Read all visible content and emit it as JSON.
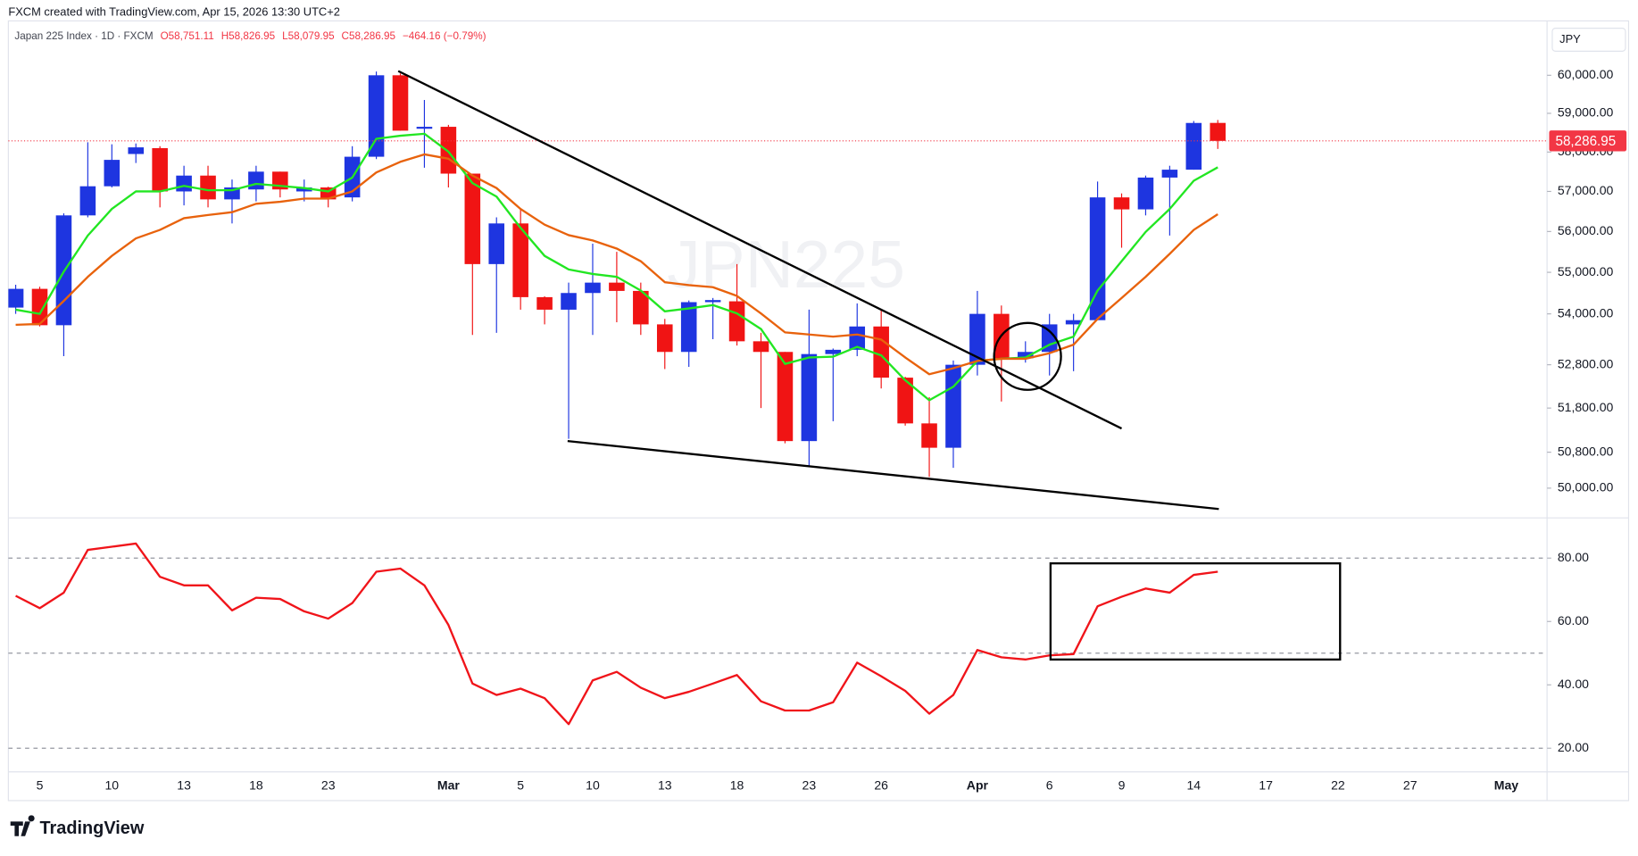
{
  "header": {
    "credit": "FXCM created with TradingView.com, Apr 15, 2026 13:30 UTC+2",
    "symbol": "Japan 225 Index · 1D · FXCM",
    "ohlc": [
      "O58,751.11",
      "H58,826.95",
      "L58,079.95",
      "C58,286.95"
    ],
    "change": "−464.16 (−0.79%)",
    "currency": "JPY",
    "watermark": "JPN225"
  },
  "logo": "TradingView",
  "chart_data": [
    {
      "type": "candlestick",
      "categories": [
        null,
        "5",
        null,
        null,
        "10",
        null,
        null,
        "13",
        null,
        null,
        "18",
        null,
        null,
        "23",
        null,
        null,
        null,
        null,
        "Mar",
        null,
        null,
        "5",
        null,
        null,
        "10",
        null,
        null,
        "13",
        null,
        null,
        "18",
        null,
        null,
        "23",
        null,
        null,
        "26",
        null,
        null,
        null,
        "Apr",
        null,
        null,
        "6",
        null,
        null,
        "9",
        null,
        null,
        "14",
        null,
        null,
        "17",
        null,
        null,
        "22",
        null,
        null,
        "27",
        null,
        null,
        null,
        "May"
      ],
      "open": [
        54150,
        54600,
        53730,
        56400,
        57130,
        57950,
        58100,
        57000,
        57400,
        56800,
        57050,
        57500,
        57000,
        57100,
        56850,
        57880,
        60000,
        58600,
        58650,
        57450,
        55200,
        56200,
        54400,
        54100,
        54500,
        54750,
        54550,
        53750,
        53100,
        54280,
        54300,
        53350,
        53100,
        51050,
        53050,
        53150,
        53700,
        52500,
        51450,
        50900,
        52800,
        54000,
        52950,
        53100,
        53750,
        53850,
        56850,
        56550,
        57350,
        57550,
        58751.11,
        null,
        null,
        null,
        null,
        null,
        null,
        null,
        null,
        null,
        null,
        null,
        null
      ],
      "high": [
        54700,
        54650,
        56450,
        58250,
        58200,
        58220,
        58150,
        57650,
        57650,
        57300,
        57650,
        57500,
        57300,
        57120,
        58150,
        60100,
        60050,
        59350,
        58700,
        57450,
        56350,
        56550,
        54420,
        54750,
        55700,
        55500,
        54750,
        53880,
        54320,
        54380,
        55200,
        53550,
        53100,
        54100,
        53180,
        54250,
        54100,
        52520,
        52050,
        52900,
        54550,
        54200,
        53350,
        54000,
        54000,
        57250,
        56950,
        57400,
        57650,
        58800,
        58826.95,
        null,
        null,
        null,
        null,
        null,
        null,
        null,
        null,
        null,
        null,
        null,
        null
      ],
      "low": [
        54000,
        53700,
        53000,
        56350,
        57100,
        57720,
        56600,
        56650,
        56600,
        56200,
        56750,
        56850,
        56750,
        56600,
        56750,
        57820,
        58550,
        57600,
        57100,
        53500,
        53550,
        54100,
        53750,
        51100,
        53500,
        53800,
        53500,
        52700,
        52750,
        53400,
        53250,
        51800,
        51000,
        50500,
        51500,
        53000,
        52250,
        51400,
        50250,
        50450,
        52550,
        51950,
        52850,
        52550,
        52650,
        53850,
        55600,
        56400,
        55900,
        57550,
        58079.95,
        null,
        null,
        null,
        null,
        null,
        null,
        null,
        null,
        null,
        null,
        null,
        null
      ],
      "close": [
        54600,
        53730,
        56400,
        57130,
        57800,
        58120,
        57000,
        57400,
        56800,
        57100,
        57500,
        57050,
        57100,
        56800,
        57880,
        60000,
        58550,
        58650,
        57450,
        55200,
        56200,
        54400,
        54100,
        54500,
        54750,
        54550,
        53750,
        53100,
        54280,
        54330,
        53350,
        53100,
        51050,
        53050,
        53150,
        53700,
        52500,
        51450,
        50900,
        52800,
        54000,
        52950,
        53100,
        53750,
        53850,
        56850,
        56550,
        57350,
        57550,
        58750,
        58286.95,
        null,
        null,
        null,
        null,
        null,
        null,
        null,
        null,
        null,
        null,
        null,
        null
      ],
      "up_color": "#1e35e0",
      "down_color": "#f01414",
      "series": [
        {
          "color": "#22e622",
          "values": [
            54100,
            54000,
            55016,
            55900,
            56561,
            57000,
            57000,
            57140,
            57030,
            57030,
            57190,
            57140,
            57085,
            57000,
            57350,
            58340,
            58420,
            58470,
            58010,
            57210,
            56870,
            56090,
            55400,
            55070,
            54960,
            54890,
            54560,
            54060,
            54130,
            54210,
            54010,
            53640,
            52820,
            52970,
            52990,
            53220,
            53020,
            52440,
            51980,
            52290,
            52890,
            52940,
            52970,
            53270,
            53460,
            54560,
            55270,
            55990,
            56560,
            57270,
            57610,
            null,
            null,
            null,
            null,
            null,
            null,
            null,
            null,
            null,
            null,
            null,
            null
          ]
        },
        {
          "color": "#e8620c",
          "values": [
            53740,
            53760,
            54310,
            54890,
            55400,
            55830,
            56040,
            56330,
            56410,
            56480,
            56690,
            56740,
            56820,
            56820,
            57000,
            57480,
            57750,
            57940,
            57830,
            57400,
            57085,
            56560,
            56170,
            55910,
            55780,
            55580,
            55270,
            54760,
            54690,
            54640,
            54430,
            54010,
            53560,
            53510,
            53460,
            53510,
            53390,
            52970,
            52580,
            52720,
            52890,
            52940,
            52940,
            53070,
            53270,
            53880,
            54380,
            54890,
            55450,
            56040,
            56430,
            null,
            null,
            null,
            null,
            null,
            null,
            null,
            null,
            null,
            null,
            null,
            null
          ]
        }
      ],
      "log_scale": true,
      "ylim": [
        49359,
        61458
      ],
      "yticks": [
        {
          "value": 60000,
          "label": "60,000.00"
        },
        {
          "value": 59000,
          "label": "59,000.00"
        },
        {
          "value": 58000,
          "label": "58,000.00"
        },
        {
          "value": 57000,
          "label": "57,000.00"
        },
        {
          "value": 56000,
          "label": "56,000.00"
        },
        {
          "value": 55000,
          "label": "55,000.00"
        },
        {
          "value": 54000,
          "label": "54,000.00"
        },
        {
          "value": 52800,
          "label": "52,800.00"
        },
        {
          "value": 51800,
          "label": "51,800.00"
        },
        {
          "value": 50800,
          "label": "50,800.00"
        },
        {
          "value": 50000,
          "label": "50,000.00"
        }
      ],
      "last_price": {
        "value": 58286.95,
        "label": "58,286.95",
        "color": "#f23645"
      },
      "grid": false
    },
    {
      "type": "line",
      "categories": [
        null,
        "5",
        null,
        null,
        "10",
        null,
        null,
        "13",
        null,
        null,
        "18",
        null,
        null,
        "23",
        null,
        null,
        null,
        null,
        "Mar",
        null,
        null,
        "5",
        null,
        null,
        "10",
        null,
        null,
        "13",
        null,
        null,
        "18",
        null,
        null,
        "23",
        null,
        null,
        "26",
        null,
        null,
        null,
        "Apr",
        null,
        null,
        "6",
        null,
        null,
        "9",
        null,
        null,
        "14",
        null,
        null,
        "17",
        null,
        null,
        "22",
        null,
        null,
        "27",
        null,
        null,
        null,
        "May"
      ],
      "series": [
        {
          "color": "#f0141a",
          "values": [
            68.1,
            64.2,
            69.1,
            82.6,
            83.6,
            84.6,
            74.1,
            71.4,
            71.4,
            63.5,
            67.5,
            67.1,
            63.2,
            60.9,
            65.8,
            75.7,
            76.7,
            71.4,
            58.9,
            40.4,
            36.8,
            38.8,
            35.8,
            27.6,
            41.4,
            44.1,
            39.1,
            35.8,
            37.8,
            40.4,
            43.1,
            34.8,
            31.9,
            31.9,
            34.5,
            47.0,
            42.7,
            38.1,
            30.9,
            36.8,
            51.0,
            48.7,
            48.0,
            49.3,
            49.7,
            64.8,
            67.8,
            70.4,
            69.1,
            74.7,
            75.7,
            null,
            null,
            null,
            null,
            null,
            null,
            null,
            null,
            null,
            null,
            null,
            null
          ]
        }
      ],
      "ylim": [
        12.7,
        92.2
      ],
      "yticks": [
        {
          "value": 80,
          "label": "80.00"
        },
        {
          "value": 60,
          "label": "60.00"
        },
        {
          "value": 40,
          "label": "40.00"
        },
        {
          "value": 20,
          "label": "20.00"
        }
      ],
      "levels": [
        80,
        50,
        20
      ],
      "grid": false
    }
  ]
}
